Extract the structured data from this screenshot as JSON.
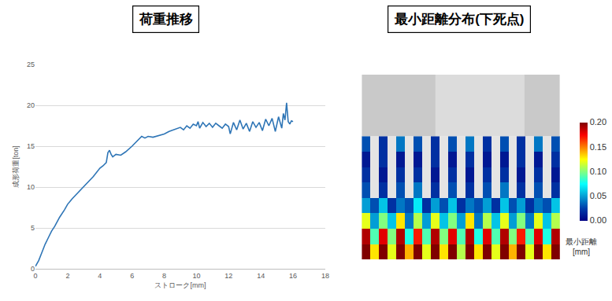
{
  "chart_data": [
    {
      "type": "line",
      "title": "荷重推移",
      "x_label": "ストローク[mm]",
      "y_label": "成形荷重[ton]",
      "x": [
        0,
        0.1,
        0.2,
        0.4,
        0.6,
        0.8,
        1.0,
        1.2,
        1.5,
        1.8,
        2.0,
        2.3,
        2.6,
        3.0,
        3.3,
        3.6,
        4.0,
        4.2,
        4.4,
        4.5,
        4.6,
        4.7,
        4.8,
        5.0,
        5.3,
        5.6,
        6.0,
        6.3,
        6.6,
        6.8,
        7.0,
        7.3,
        7.6,
        8.0,
        8.3,
        8.6,
        9.0,
        9.2,
        9.4,
        9.6,
        9.8,
        10.0,
        10.1,
        10.2,
        10.4,
        10.6,
        10.8,
        11.0,
        11.2,
        11.4,
        11.6,
        11.8,
        12.0,
        12.1,
        12.3,
        12.5,
        12.7,
        12.9,
        13.1,
        13.3,
        13.5,
        13.7,
        13.9,
        14.1,
        14.3,
        14.5,
        14.7,
        14.9,
        15.0,
        15.1,
        15.3,
        15.4,
        15.5,
        15.6,
        15.7,
        15.8,
        15.9,
        16.0
      ],
      "values": [
        0.3,
        0.6,
        1.0,
        2.0,
        3.0,
        3.8,
        4.6,
        5.2,
        6.3,
        7.2,
        7.9,
        8.6,
        9.2,
        10.1,
        10.7,
        11.3,
        12.3,
        12.6,
        13.0,
        14.2,
        14.5,
        14.0,
        13.7,
        14.0,
        13.9,
        14.3,
        15.0,
        15.6,
        16.2,
        16.0,
        16.2,
        16.1,
        16.3,
        16.5,
        16.8,
        17.0,
        17.3,
        17.0,
        17.5,
        17.2,
        17.7,
        17.5,
        18.0,
        17.2,
        17.9,
        17.4,
        17.8,
        17.3,
        17.8,
        17.5,
        17.2,
        17.7,
        17.4,
        16.5,
        17.9,
        17.0,
        18.2,
        17.1,
        17.8,
        16.8,
        18.0,
        17.3,
        17.9,
        16.9,
        18.3,
        17.5,
        18.4,
        16.8,
        17.6,
        18.6,
        17.2,
        19.0,
        18.2,
        20.3,
        18.0,
        17.7,
        18.1,
        18.0
      ],
      "color": "#2e75b6",
      "xlim": [
        0,
        18
      ],
      "xticks": [
        0,
        2,
        4,
        6,
        8,
        10,
        12,
        14,
        16,
        18
      ],
      "ylim": [
        0,
        25
      ],
      "yticks": [
        0,
        5,
        10,
        15,
        20,
        25
      ],
      "grid": true
    },
    {
      "type": "heatmap",
      "title": "最小距離分布(下死点)",
      "cells": [
        [
          0.2,
          0.13,
          0.2,
          0.12,
          0.2,
          0.14,
          0.2,
          0.12,
          0.2,
          0.13,
          0.2,
          0.11,
          0.2,
          0.13,
          0.2,
          0.12,
          0.2,
          0.14,
          0.2,
          0.12,
          0.2,
          0.13,
          0.2
        ],
        [
          0.19,
          0.09,
          0.18,
          0.1,
          0.19,
          0.08,
          0.17,
          0.09,
          0.19,
          0.1,
          0.18,
          0.09,
          0.19,
          0.08,
          0.18,
          0.09,
          0.19,
          0.1,
          0.17,
          0.09,
          0.18,
          0.08,
          0.19
        ],
        [
          0.12,
          0.05,
          0.1,
          0.06,
          0.13,
          0.04,
          0.11,
          0.05,
          0.12,
          0.06,
          0.1,
          0.05,
          0.13,
          0.04,
          0.11,
          0.06,
          0.12,
          0.05,
          0.1,
          0.04,
          0.12,
          0.06,
          0.11
        ],
        [
          0.05,
          0.03,
          0.06,
          0.02,
          0.04,
          0.03,
          0.07,
          0.02,
          0.05,
          0.03,
          0.06,
          0.02,
          0.04,
          0.03,
          0.05,
          0.02,
          0.06,
          0.03,
          0.05,
          0.02,
          0.04,
          0.03,
          0.06
        ],
        [
          0.03,
          null,
          0.02,
          null,
          0.03,
          null,
          0.04,
          null,
          0.02,
          null,
          0.03,
          null,
          0.02,
          null,
          0.03,
          null,
          0.04,
          null,
          0.02,
          null,
          0.03,
          null,
          0.02
        ],
        [
          0.02,
          null,
          0.01,
          null,
          0.02,
          null,
          0.02,
          null,
          0.01,
          null,
          0.02,
          null,
          0.01,
          null,
          0.02,
          null,
          0.02,
          null,
          0.01,
          null,
          0.02,
          null,
          0.01
        ],
        [
          0.01,
          null,
          0.02,
          null,
          0.01,
          null,
          0.01,
          null,
          0.02,
          null,
          0.01,
          null,
          0.02,
          null,
          0.01,
          null,
          0.01,
          null,
          0.02,
          null,
          0.01,
          null,
          0.02
        ],
        [
          0.03,
          null,
          0.02,
          null,
          0.04,
          null,
          0.03,
          null,
          0.02,
          null,
          0.03,
          null,
          0.04,
          null,
          0.02,
          null,
          0.03,
          null,
          0.02,
          null,
          0.04,
          null,
          0.03
        ]
      ],
      "zlim": [
        0,
        0.2
      ],
      "zticks": [
        {
          "value": 0,
          "label": "0.00"
        },
        {
          "value": 0.05,
          "label": "0.05"
        },
        {
          "value": 0.1,
          "label": "0.10"
        },
        {
          "value": 0.15,
          "label": "0.15"
        },
        {
          "value": 0.2,
          "label": "0.20"
        }
      ],
      "colorbar_title": [
        "最小距離",
        "[mm]"
      ]
    }
  ]
}
